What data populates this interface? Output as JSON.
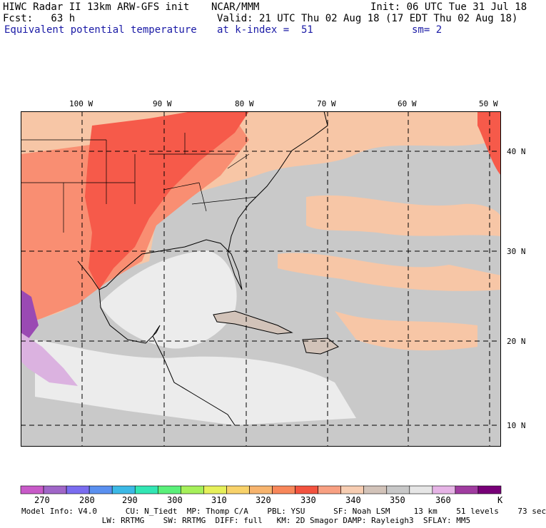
{
  "header": {
    "line1_left": "HIWC Radar II 13km ARW-GFS init",
    "line1_mid": "NCAR/MMM",
    "line1_right": "Init: 06 UTC Tue 31 Jul 18",
    "line2_left": "Fcst:   63 h",
    "line2_right": "Valid: 21 UTC Thu 02 Aug 18 (17 EDT Thu 02 Aug 18)",
    "line3_field": "Equivalent potential temperature",
    "line3_level": "at k-index =  51",
    "line3_smooth": "sm= 2"
  },
  "map": {
    "lon_labels": [
      "100 W",
      "90 W",
      "80 W",
      "70 W",
      "60 W",
      "50 W"
    ],
    "lat_labels": [
      "40 N",
      "30 N",
      "20 N",
      "10 N"
    ],
    "colors": {
      "land_hot": "#f65a4a",
      "warm": "#f98e72",
      "mild": "#f7c6a6",
      "neutral": "#c9c9c9",
      "cool": "#ececec",
      "purple": "#9a4ab3"
    }
  },
  "colorbar": {
    "labels": [
      "270",
      "280",
      "290",
      "300",
      "310",
      "320",
      "330",
      "340",
      "350",
      "360",
      "K"
    ],
    "colors": [
      "#c85ac8",
      "#a066c8",
      "#7a6cf0",
      "#5a90f0",
      "#3cb9e6",
      "#32e6b4",
      "#5af07a",
      "#a6f05a",
      "#e6f05a",
      "#f8d26a",
      "#f7b46e",
      "#f8875a",
      "#f3533f",
      "#f8a082",
      "#f7cdb2",
      "#d2c3b9",
      "#c8c8c8",
      "#e6e6e6",
      "#e6b4e6",
      "#a03ca0",
      "#780078"
    ]
  },
  "footer": {
    "line1": "Model Info: V4.0      CU: N_Tiedt  MP: Thomp C/A    PBL: YSU      SF: Noah LSM     13 km    51 levels    73 sec",
    "line2": "                 LW: RRTMG    SW: RRTMG  DIFF: full   KM: 2D Smagor DAMP: Rayleigh3  SFLAY: MM5"
  }
}
